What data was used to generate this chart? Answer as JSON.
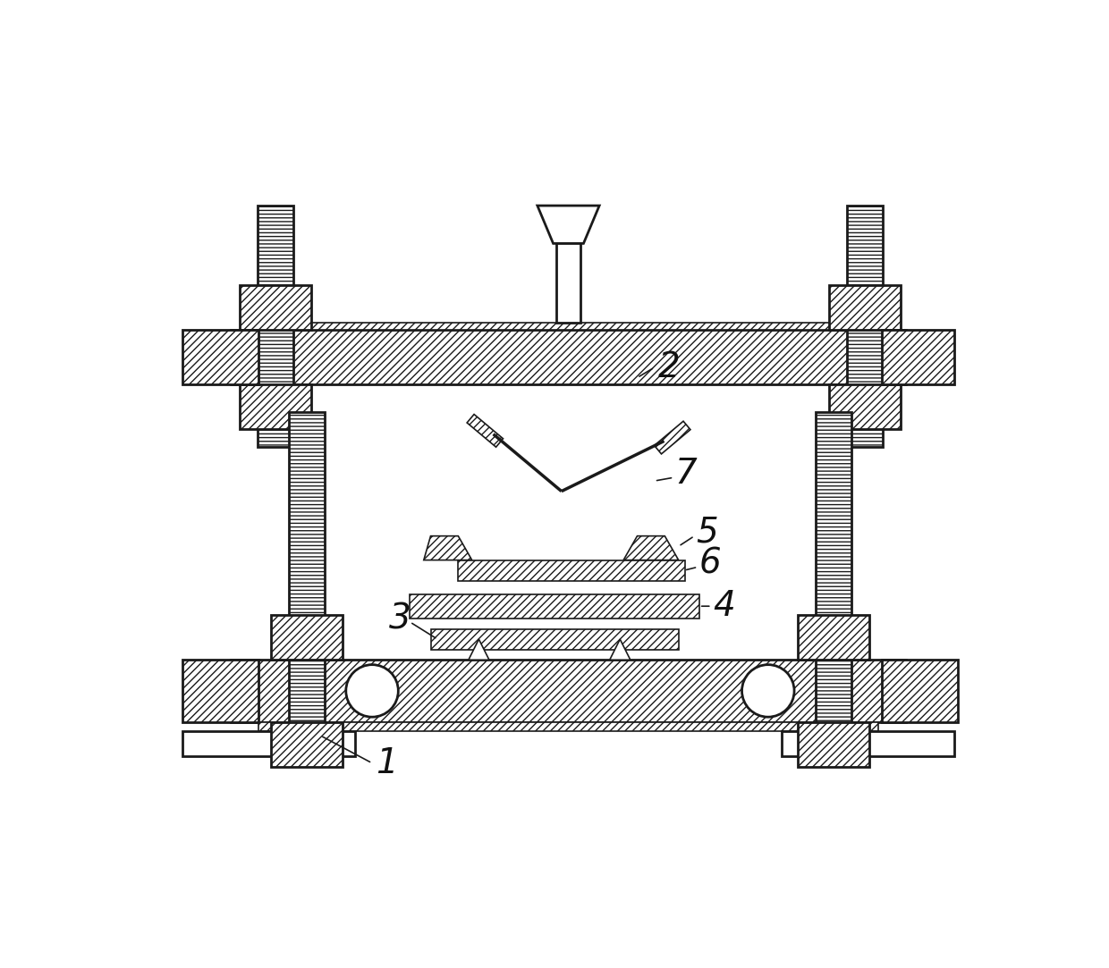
{
  "bg_color": "#ffffff",
  "line_color": "#1a1a1a",
  "label_color": "#111111",
  "fig_width": 12.4,
  "fig_height": 10.83
}
